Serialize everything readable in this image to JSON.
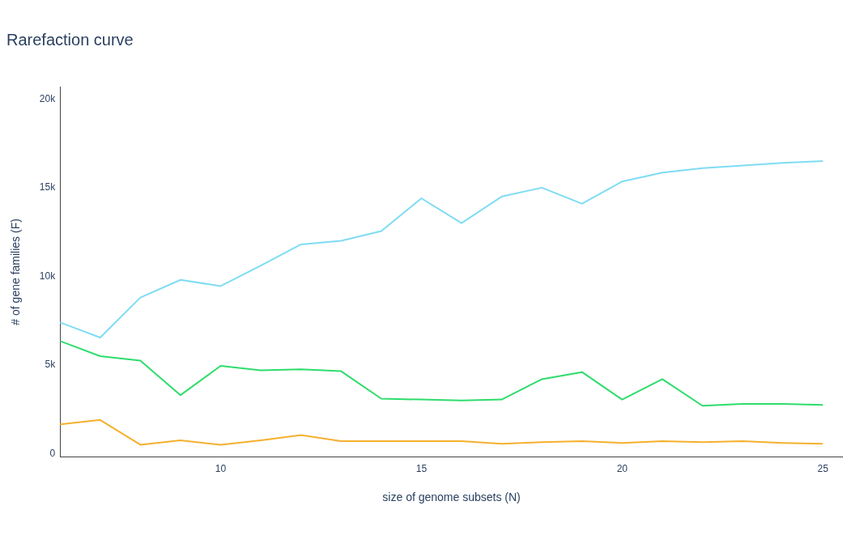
{
  "chart_data": {
    "type": "line",
    "title": "Rarefaction curve",
    "xlabel": "size of genome subsets (N)",
    "ylabel": "# of gene families (F)",
    "x": [
      6,
      7,
      8,
      9,
      10,
      11,
      12,
      13,
      14,
      15,
      16,
      17,
      18,
      19,
      20,
      21,
      22,
      23,
      24,
      25
    ],
    "series": [
      {
        "color": "#7fdcf3",
        "values": [
          7400,
          6550,
          8800,
          9800,
          9450,
          10600,
          11800,
          12000,
          12550,
          14400,
          13000,
          14500,
          15000,
          14100,
          15350,
          15850,
          16100,
          16250,
          16400,
          16500
        ]
      },
      {
        "color": "#2edc6c",
        "values": [
          6350,
          5500,
          5250,
          3300,
          4950,
          4700,
          4750,
          4650,
          3100,
          3050,
          3000,
          3050,
          4200,
          4600,
          3050,
          4200,
          2700,
          2800,
          2800,
          2750
        ]
      },
      {
        "color": "#f5b02e",
        "values": [
          1650,
          1900,
          500,
          750,
          500,
          750,
          1050,
          700,
          700,
          700,
          700,
          550,
          650,
          700,
          600,
          700,
          650,
          700,
          600,
          550
        ]
      }
    ],
    "xlim": [
      6,
      25.5
    ],
    "xticks": [
      10,
      15,
      20,
      25
    ],
    "ylim": [
      -200,
      20700
    ],
    "yticks": [
      {
        "value": 0,
        "label": "0"
      },
      {
        "value": 5000,
        "label": "5k"
      },
      {
        "value": 10000,
        "label": "10k"
      },
      {
        "value": 15000,
        "label": "15k"
      },
      {
        "value": 20000,
        "label": "20k"
      }
    ],
    "grid": false,
    "legend": false,
    "marker": "none",
    "line_style": "solid"
  }
}
